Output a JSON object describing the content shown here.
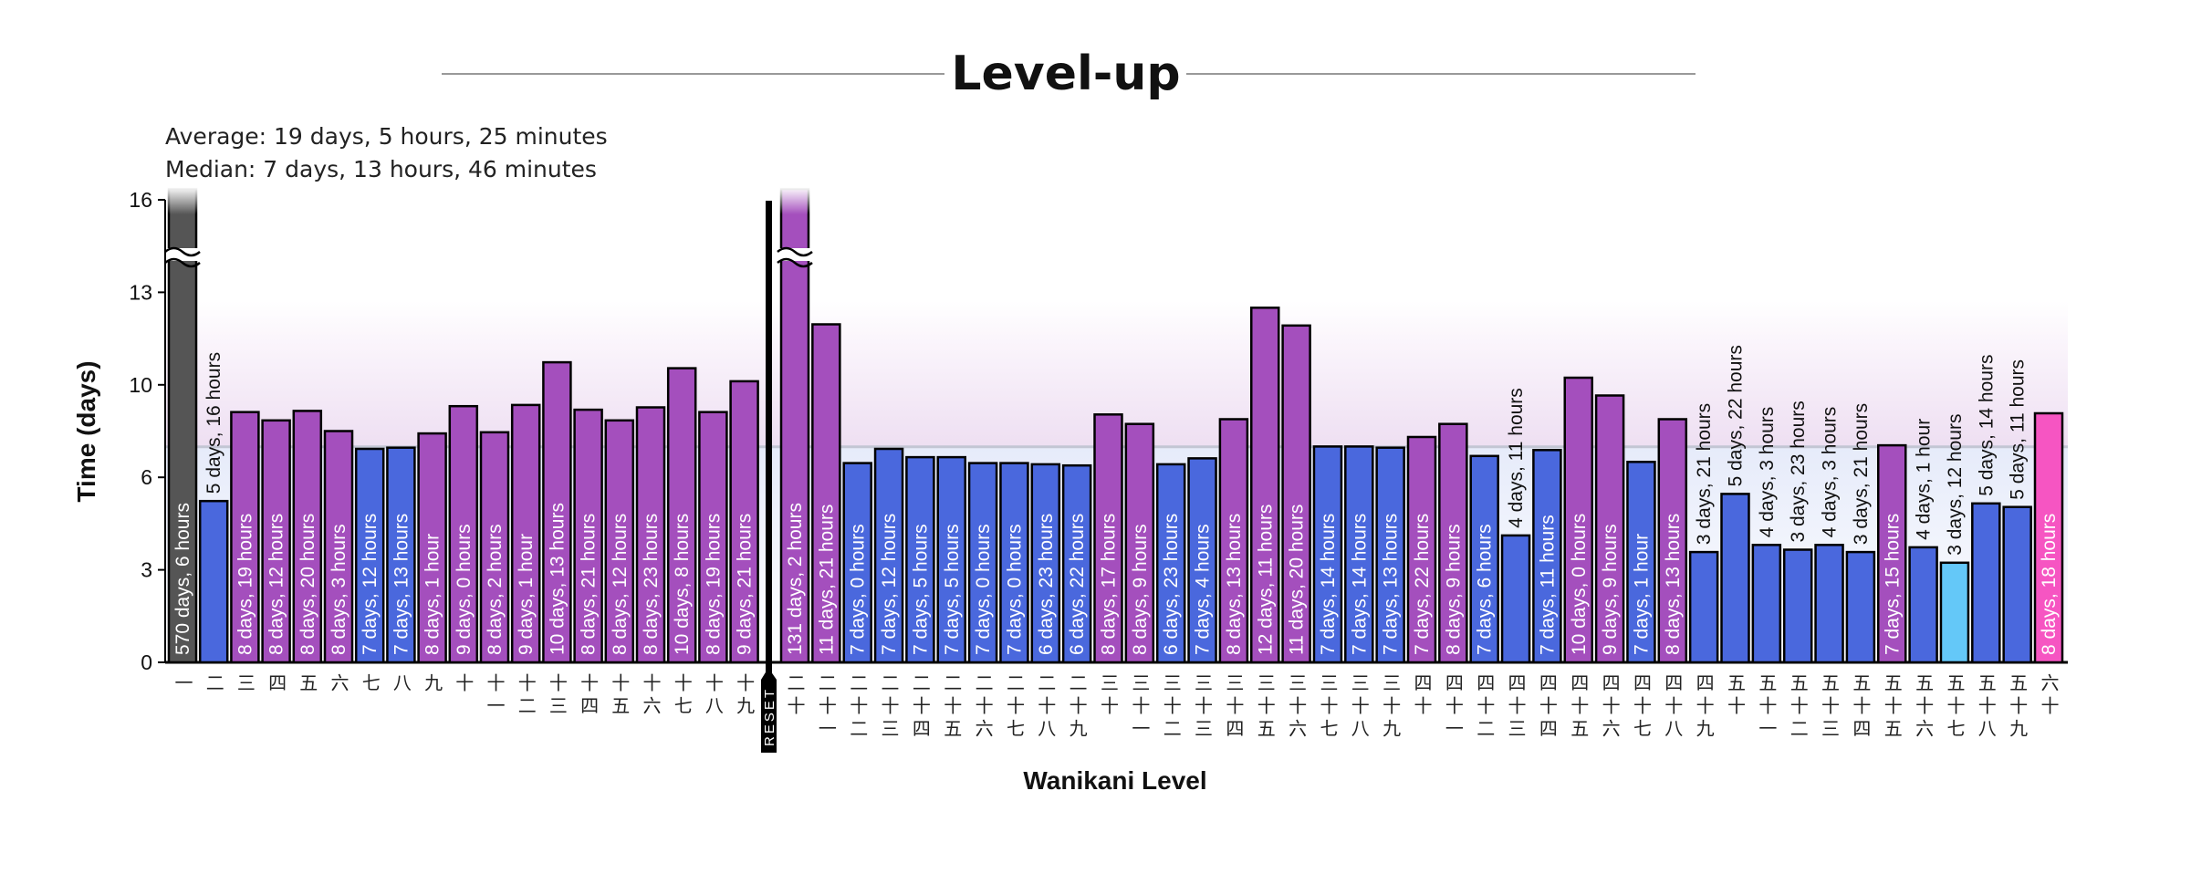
{
  "chart_data": {
    "type": "bar",
    "title": "Level-up",
    "stats": {
      "average": "Average: 19 days, 5 hours, 25 minutes",
      "median": "Median: 7 days, 13 hours, 46 minutes",
      "median_days": 7.574
    },
    "xlabel": "Wanikani Level",
    "ylabel": "Time (days)",
    "ylim": [
      0,
      16.25
    ],
    "yticks": [
      {
        "v": 0,
        "t": "0"
      },
      {
        "v": 3.25,
        "t": "3"
      },
      {
        "v": 6.5,
        "t": "6"
      },
      {
        "v": 9.75,
        "t": "10"
      },
      {
        "v": 13,
        "t": "13"
      },
      {
        "v": 16.25,
        "t": "16"
      }
    ],
    "reset_label": "RESET",
    "colors": {
      "purple": "#a44fbd",
      "blue": "#4a68dd",
      "gray": "#555555",
      "lightblue": "#64c8f8",
      "pink": "#f655c2"
    },
    "before_reset": [
      {
        "level": "一",
        "label": "570 days, 6 hours",
        "days": 570.25,
        "color": "gray",
        "broken": true
      },
      {
        "level": "二",
        "label": "5 days, 16 hours",
        "days": 5.667,
        "color": "blue"
      },
      {
        "level": "三",
        "label": "8 days, 19 hours",
        "days": 8.792,
        "color": "purple"
      },
      {
        "level": "四",
        "label": "8 days, 12 hours",
        "days": 8.5,
        "color": "purple"
      },
      {
        "level": "五",
        "label": "8 days, 20 hours",
        "days": 8.833,
        "color": "purple"
      },
      {
        "level": "六",
        "label": "8 days, 3 hours",
        "days": 8.125,
        "color": "purple"
      },
      {
        "level": "七",
        "label": "7 days, 12 hours",
        "days": 7.5,
        "color": "blue"
      },
      {
        "level": "八",
        "label": "7 days, 13 hours",
        "days": 7.542,
        "color": "blue"
      },
      {
        "level": "九",
        "label": "8 days, 1 hour",
        "days": 8.042,
        "color": "purple"
      },
      {
        "level": "十",
        "label": "9 days, 0 hours",
        "days": 9.0,
        "color": "purple"
      },
      {
        "level": "十一",
        "label": "8 days, 2 hours",
        "days": 8.083,
        "color": "purple"
      },
      {
        "level": "十二",
        "label": "9 days, 1 hour",
        "days": 9.042,
        "color": "purple"
      },
      {
        "level": "十三",
        "label": "10 days, 13 hours",
        "days": 10.542,
        "color": "purple"
      },
      {
        "level": "十四",
        "label": "8 days, 21 hours",
        "days": 8.875,
        "color": "purple"
      },
      {
        "level": "十五",
        "label": "8 days, 12 hours",
        "days": 8.5,
        "color": "purple"
      },
      {
        "level": "十六",
        "label": "8 days, 23 hours",
        "days": 8.958,
        "color": "purple"
      },
      {
        "level": "十七",
        "label": "10 days, 8 hours",
        "days": 10.333,
        "color": "purple"
      },
      {
        "level": "十八",
        "label": "8 days, 19 hours",
        "days": 8.792,
        "color": "purple"
      },
      {
        "level": "十九",
        "label": "9 days, 21 hours",
        "days": 9.875,
        "color": "purple"
      }
    ],
    "after_reset": [
      {
        "level": "二十",
        "label": "131 days, 2 hours",
        "days": 131.083,
        "color": "purple",
        "broken": true
      },
      {
        "level": "二十一",
        "label": "11 days, 21 hours",
        "days": 11.875,
        "color": "purple"
      },
      {
        "level": "二十二",
        "label": "7 days, 0 hours",
        "days": 7.0,
        "color": "blue"
      },
      {
        "level": "二十三",
        "label": "7 days, 12 hours",
        "days": 7.5,
        "color": "blue"
      },
      {
        "level": "二十四",
        "label": "7 days, 5 hours",
        "days": 7.208,
        "color": "blue"
      },
      {
        "level": "二十五",
        "label": "7 days, 5 hours",
        "days": 7.208,
        "color": "blue"
      },
      {
        "level": "二十六",
        "label": "7 days, 0 hours",
        "days": 7.0,
        "color": "blue"
      },
      {
        "level": "二十七",
        "label": "7 days, 0 hours",
        "days": 7.0,
        "color": "blue"
      },
      {
        "level": "二十八",
        "label": "6 days, 23 hours",
        "days": 6.958,
        "color": "blue"
      },
      {
        "level": "二十九",
        "label": "6 days, 22 hours",
        "days": 6.917,
        "color": "blue"
      },
      {
        "level": "三十",
        "label": "8 days, 17 hours",
        "days": 8.708,
        "color": "purple"
      },
      {
        "level": "三十一",
        "label": "8 days, 9 hours",
        "days": 8.375,
        "color": "purple"
      },
      {
        "level": "三十二",
        "label": "6 days, 23 hours",
        "days": 6.958,
        "color": "blue"
      },
      {
        "level": "三十三",
        "label": "7 days, 4 hours",
        "days": 7.167,
        "color": "blue"
      },
      {
        "level": "三十四",
        "label": "8 days, 13 hours",
        "days": 8.542,
        "color": "purple"
      },
      {
        "level": "三十五",
        "label": "12 days, 11 hours",
        "days": 12.458,
        "color": "purple"
      },
      {
        "level": "三十六",
        "label": "11 days, 20 hours",
        "days": 11.833,
        "color": "purple"
      },
      {
        "level": "三十七",
        "label": "7 days, 14 hours",
        "days": 7.583,
        "color": "blue"
      },
      {
        "level": "三十八",
        "label": "7 days, 14 hours",
        "days": 7.583,
        "color": "blue"
      },
      {
        "level": "三十九",
        "label": "7 days, 13 hours",
        "days": 7.542,
        "color": "blue"
      },
      {
        "level": "四十",
        "label": "7 days, 22 hours",
        "days": 7.917,
        "color": "purple"
      },
      {
        "level": "四十一",
        "label": "8 days, 9 hours",
        "days": 8.375,
        "color": "purple"
      },
      {
        "level": "四十二",
        "label": "7 days, 6 hours",
        "days": 7.25,
        "color": "blue"
      },
      {
        "level": "四十三",
        "label": "4 days, 11 hours",
        "days": 4.458,
        "color": "blue"
      },
      {
        "level": "四十四",
        "label": "7 days, 11 hours",
        "days": 7.458,
        "color": "blue"
      },
      {
        "level": "四十五",
        "label": "10 days, 0 hours",
        "days": 10.0,
        "color": "purple"
      },
      {
        "level": "四十六",
        "label": "9 days, 9 hours",
        "days": 9.375,
        "color": "purple"
      },
      {
        "level": "四十七",
        "label": "7 days, 1 hour",
        "days": 7.042,
        "color": "blue"
      },
      {
        "level": "四十八",
        "label": "8 days, 13 hours",
        "days": 8.542,
        "color": "purple"
      },
      {
        "level": "四十九",
        "label": "3 days, 21 hours",
        "days": 3.875,
        "color": "blue"
      },
      {
        "level": "五十",
        "label": "5 days, 22 hours",
        "days": 5.917,
        "color": "blue"
      },
      {
        "level": "五十一",
        "label": "4 days, 3 hours",
        "days": 4.125,
        "color": "blue"
      },
      {
        "level": "五十二",
        "label": "3 days, 23 hours",
        "days": 3.958,
        "color": "blue"
      },
      {
        "level": "五十三",
        "label": "4 days, 3 hours",
        "days": 4.125,
        "color": "blue"
      },
      {
        "level": "五十四",
        "label": "3 days, 21 hours",
        "days": 3.875,
        "color": "blue"
      },
      {
        "level": "五十五",
        "label": "7 days, 15 hours",
        "days": 7.625,
        "color": "purple"
      },
      {
        "level": "五十六",
        "label": "4 days, 1 hour",
        "days": 4.042,
        "color": "blue"
      },
      {
        "level": "五十七",
        "label": "3 days, 12 hours",
        "days": 3.5,
        "color": "lightblue"
      },
      {
        "level": "五十八",
        "label": "5 days, 14 hours",
        "days": 5.583,
        "color": "blue"
      },
      {
        "level": "五十九",
        "label": "5 days, 11 hours",
        "days": 5.458,
        "color": "blue"
      },
      {
        "level": "六十",
        "label": "8 days, 18 hours",
        "days": 8.75,
        "color": "pink"
      }
    ]
  }
}
